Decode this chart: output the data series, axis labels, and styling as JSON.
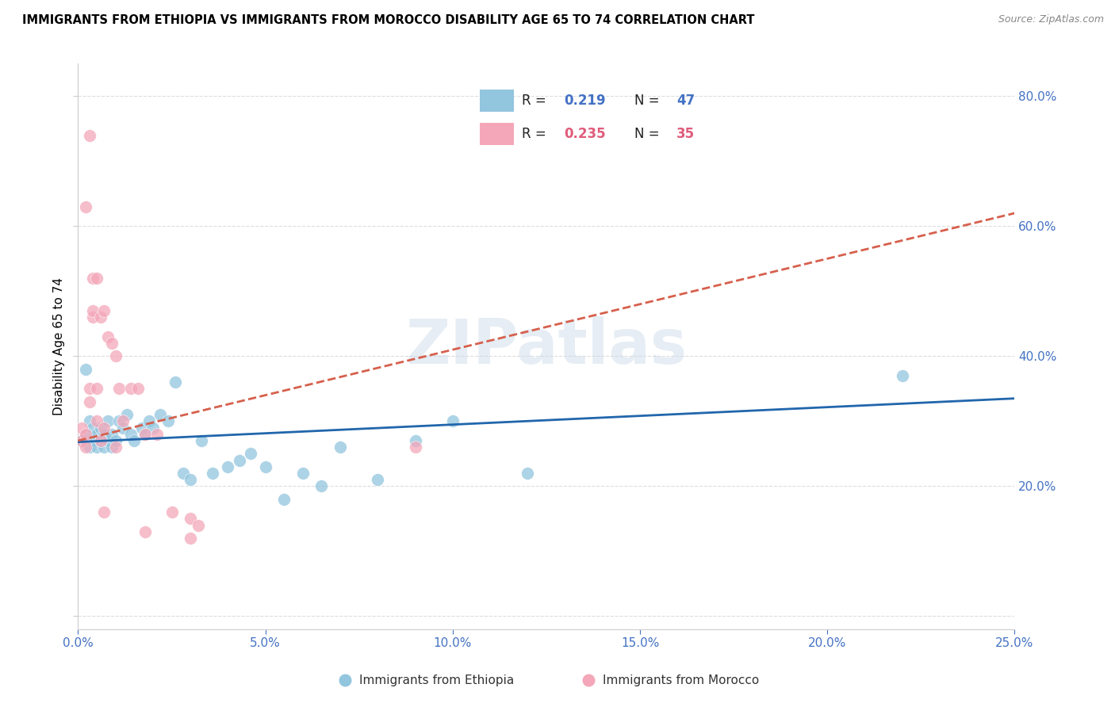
{
  "title": "IMMIGRANTS FROM ETHIOPIA VS IMMIGRANTS FROM MOROCCO DISABILITY AGE 65 TO 74 CORRELATION CHART",
  "source": "Source: ZipAtlas.com",
  "ylabel": "Disability Age 65 to 74",
  "xlim": [
    0.0,
    0.25
  ],
  "ylim": [
    -0.02,
    0.85
  ],
  "plot_ylim": [
    -0.02,
    0.85
  ],
  "yticks": [
    0.0,
    0.2,
    0.4,
    0.6,
    0.8
  ],
  "xticks": [
    0.0,
    0.05,
    0.1,
    0.15,
    0.2,
    0.25
  ],
  "right_yticks": [
    0.2,
    0.4,
    0.6,
    0.8
  ],
  "ethiopia_color": "#92C5DE",
  "morocco_color": "#F4A7B9",
  "ethiopia_line_color": "#2166AC",
  "morocco_line_color": "#D6604D",
  "r_ethiopia": 0.219,
  "n_ethiopia": 47,
  "r_morocco": 0.235,
  "n_morocco": 35,
  "legend_label_ethiopia": "Immigrants from Ethiopia",
  "legend_label_morocco": "Immigrants from Morocco",
  "watermark": "ZIPatlas",
  "ethiopia_x": [
    0.001,
    0.002,
    0.002,
    0.003,
    0.003,
    0.004,
    0.004,
    0.005,
    0.005,
    0.006,
    0.006,
    0.007,
    0.007,
    0.008,
    0.008,
    0.009,
    0.009,
    0.01,
    0.011,
    0.012,
    0.013,
    0.014,
    0.015,
    0.017,
    0.018,
    0.019,
    0.02,
    0.022,
    0.024,
    0.026,
    0.028,
    0.03,
    0.033,
    0.036,
    0.04,
    0.043,
    0.046,
    0.05,
    0.055,
    0.06,
    0.065,
    0.07,
    0.08,
    0.09,
    0.1,
    0.12,
    0.22
  ],
  "ethiopia_y": [
    0.27,
    0.28,
    0.38,
    0.26,
    0.3,
    0.29,
    0.27,
    0.28,
    0.26,
    0.27,
    0.29,
    0.26,
    0.28,
    0.27,
    0.3,
    0.26,
    0.28,
    0.27,
    0.3,
    0.29,
    0.31,
    0.28,
    0.27,
    0.29,
    0.28,
    0.3,
    0.29,
    0.31,
    0.3,
    0.36,
    0.22,
    0.21,
    0.27,
    0.22,
    0.23,
    0.24,
    0.25,
    0.23,
    0.18,
    0.22,
    0.2,
    0.26,
    0.21,
    0.27,
    0.3,
    0.22,
    0.37
  ],
  "morocco_x": [
    0.001,
    0.001,
    0.002,
    0.002,
    0.003,
    0.003,
    0.004,
    0.004,
    0.005,
    0.005,
    0.006,
    0.006,
    0.007,
    0.007,
    0.008,
    0.009,
    0.01,
    0.011,
    0.012,
    0.014,
    0.016,
    0.018,
    0.021,
    0.025,
    0.03,
    0.032,
    0.002,
    0.003,
    0.004,
    0.005,
    0.007,
    0.01,
    0.018,
    0.03,
    0.09
  ],
  "morocco_y": [
    0.27,
    0.29,
    0.26,
    0.28,
    0.33,
    0.35,
    0.46,
    0.47,
    0.3,
    0.35,
    0.27,
    0.46,
    0.47,
    0.29,
    0.43,
    0.42,
    0.4,
    0.35,
    0.3,
    0.35,
    0.35,
    0.28,
    0.28,
    0.16,
    0.15,
    0.14,
    0.63,
    0.74,
    0.52,
    0.52,
    0.16,
    0.26,
    0.13,
    0.12,
    0.26
  ]
}
